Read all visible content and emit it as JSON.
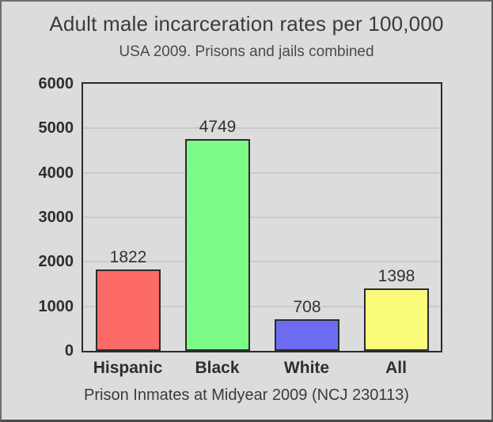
{
  "chart_data": {
    "type": "bar",
    "title": "Adult male incarceration rates per 100,000",
    "subtitle": "USA 2009. Prisons and jails combined",
    "caption": "Prison Inmates at Midyear 2009 (NCJ 230113)",
    "categories": [
      "Hispanic",
      "Black",
      "White",
      "All"
    ],
    "values": [
      1822,
      4749,
      708,
      1398
    ],
    "bar_colors": [
      "#fc6b66",
      "#7dfa88",
      "#6c6cf2",
      "#fbfb7b"
    ],
    "bar_border_color": "#2b2b2b",
    "ylim": [
      0,
      6000
    ],
    "yticks": [
      0,
      1000,
      2000,
      3000,
      4000,
      5000,
      6000
    ],
    "grid": true,
    "gridline_color": "#cbcbcb",
    "background_color": "#dcdcdc",
    "legend": "none",
    "xlabel": "",
    "ylabel": ""
  }
}
